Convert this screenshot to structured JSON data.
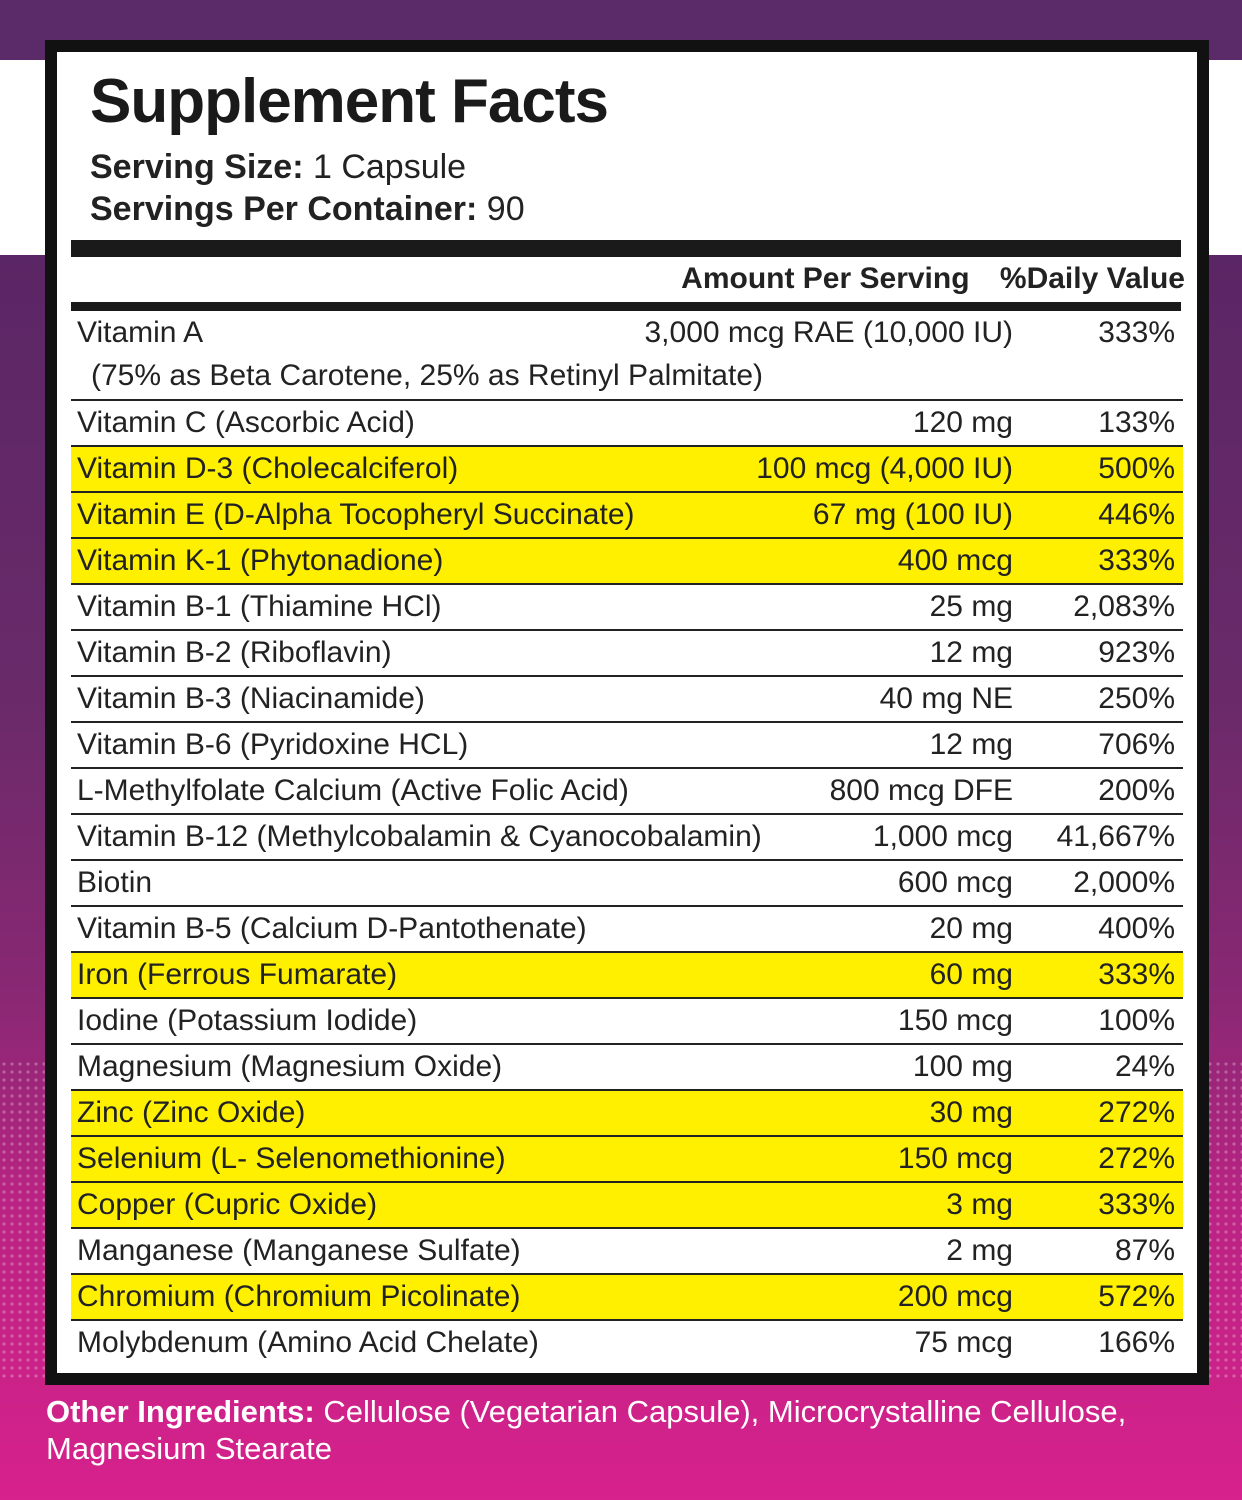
{
  "label": {
    "title": "Supplement Facts",
    "serving_size_label": "Serving Size:",
    "serving_size_value": "1 Capsule",
    "servings_per_container_label": "Servings Per Container:",
    "servings_per_container_value": "90",
    "column_amount": "Amount Per Serving",
    "column_daily_value": "%Daily Value",
    "rows": [
      {
        "name": "Vitamin A",
        "amount": "3,000 mcg RAE (10,000 IU)",
        "dv": "333%",
        "sub": "(75% as Beta Carotene, 25% as Retinyl Palmitate)"
      },
      {
        "name": "Vitamin C (Ascorbic Acid)",
        "amount": "120 mg",
        "dv": "133%"
      },
      {
        "name": "Vitamin D-3 (Cholecalciferol)",
        "amount": "100 mcg (4,000 IU)",
        "dv": "500%",
        "highlight": true
      },
      {
        "name": "Vitamin E (D-Alpha Tocopheryl Succinate)",
        "amount": "67 mg (100 IU)",
        "dv": "446%",
        "highlight": true
      },
      {
        "name": "Vitamin K-1 (Phytonadione)",
        "amount": "400 mcg",
        "dv": "333%",
        "highlight": true
      },
      {
        "name": "Vitamin B-1 (Thiamine HCl)",
        "amount": "25 mg",
        "dv": "2,083%"
      },
      {
        "name": "Vitamin B-2 (Riboflavin)",
        "amount": "12 mg",
        "dv": "923%"
      },
      {
        "name": "Vitamin B-3 (Niacinamide)",
        "amount": "40 mg NE",
        "dv": "250%"
      },
      {
        "name": "Vitamin B-6 (Pyridoxine HCL)",
        "amount": "12 mg",
        "dv": "706%"
      },
      {
        "name": "L-Methylfolate Calcium (Active Folic Acid)",
        "amount": "800 mcg DFE",
        "dv": "200%"
      },
      {
        "name": "Vitamin B-12 (Methylcobalamin & Cyanocobalamin)",
        "amount": "1,000 mcg",
        "dv": "41,667%"
      },
      {
        "name": "Biotin",
        "amount": "600 mcg",
        "dv": "2,000%"
      },
      {
        "name": "Vitamin B-5 (Calcium D-Pantothenate)",
        "amount": "20 mg",
        "dv": "400%"
      },
      {
        "name": "Iron (Ferrous Fumarate)",
        "amount": "60 mg",
        "dv": "333%",
        "highlight": true
      },
      {
        "name": "Iodine (Potassium Iodide)",
        "amount": "150 mcg",
        "dv": "100%"
      },
      {
        "name": "Magnesium (Magnesium Oxide)",
        "amount": "100 mg",
        "dv": "24%"
      },
      {
        "name": "Zinc (Zinc Oxide)",
        "amount": "30 mg",
        "dv": "272%",
        "highlight": true
      },
      {
        "name": "Selenium (L- Selenomethionine)",
        "amount": "150 mcg",
        "dv": "272%",
        "highlight": true
      },
      {
        "name": "Copper (Cupric Oxide)",
        "amount": "3 mg",
        "dv": "333%",
        "highlight": true
      },
      {
        "name": "Manganese (Manganese Sulfate)",
        "amount": "2 mg",
        "dv": "87%"
      },
      {
        "name": "Chromium (Chromium Picolinate)",
        "amount": "200 mcg",
        "dv": "572%",
        "highlight": true
      },
      {
        "name": "Molybdenum (Amino Acid Chelate)",
        "amount": "75 mcg",
        "dv": "166%"
      }
    ]
  },
  "other_ingredients": {
    "label": "Other Ingredients:",
    "text": " Cellulose (Vegetarian Capsule), Microcrystalline Cellulose, Magnesium Stearate"
  },
  "colors": {
    "highlight": "#fff000",
    "purple": "#5a2a69",
    "pink": "#d7218c"
  }
}
